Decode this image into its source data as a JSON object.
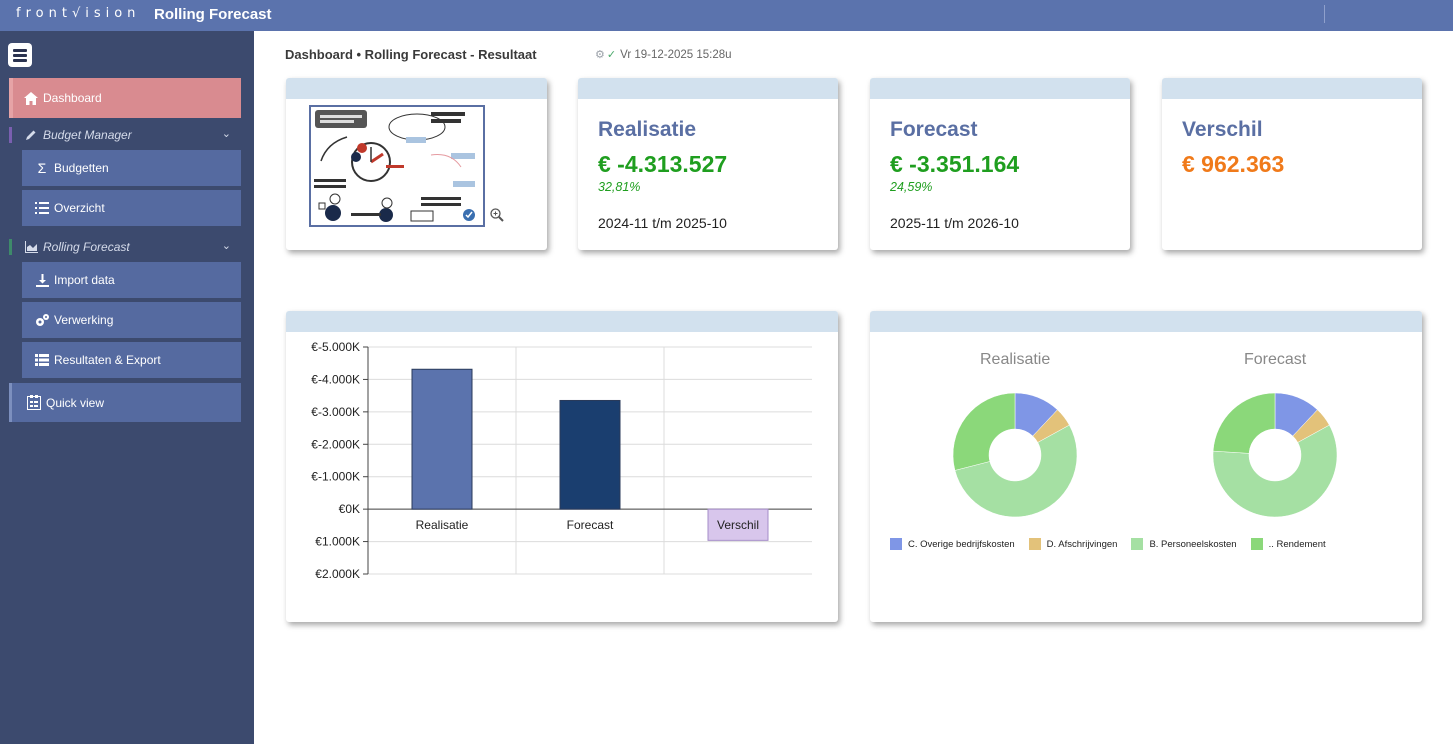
{
  "topbar": {
    "logo_prefix": "front",
    "logo_suffix": "ision",
    "title": "Rolling Forecast"
  },
  "sidebar": {
    "dashboard": "Dashboard",
    "budget_manager": "Budget Manager",
    "budgetten": "Budgetten",
    "overzicht": "Overzicht",
    "rolling_forecast": "Rolling Forecast",
    "import_data": "Import data",
    "verwerking": "Verwerking",
    "resultaten": "Resultaten & Export",
    "quick_view": "Quick view"
  },
  "header": {
    "breadcrumb": "Dashboard • Rolling Forecast - Resultaat",
    "status": "Vr 19-12-2025 15:28u"
  },
  "kpis": {
    "realisatie": {
      "title": "Realisatie",
      "value": "€ -4.313.527",
      "pct": "32,81%",
      "period": "2024-11 t/m 2025-10"
    },
    "forecast": {
      "title": "Forecast",
      "value": "€ -3.351.164",
      "pct": "24,59%",
      "period": "2025-11 t/m 2026-10"
    },
    "verschil": {
      "title": "Verschil",
      "value": "€ 962.363"
    }
  },
  "colors": {
    "green": "#1f9e1f",
    "orange": "#f07a1a",
    "bar_realisatie": "#5b73ad",
    "bar_forecast": "#1a3e6f",
    "bar_verschil": "#d8c6ec"
  },
  "chart_data": [
    {
      "type": "bar",
      "categories": [
        "Realisatie",
        "Forecast",
        "Verschil"
      ],
      "values": [
        -4313.527,
        -3351.164,
        962.363
      ],
      "ylim": [
        -5000,
        2000
      ],
      "yticks": [
        "€-5.000K",
        "€-4.000K",
        "€-3.000K",
        "€-2.000K",
        "€-1.000K",
        "€0K",
        "€1.000K",
        "€2.000K"
      ],
      "inverted_axis": true,
      "grid": true
    },
    {
      "type": "pie",
      "title": "Realisatie",
      "labels": [
        "C. Overige bedrijfskosten",
        "D. Afschrijvingen",
        "B. Personeelskosten",
        ".. Rendement"
      ],
      "values": [
        12,
        5,
        54,
        29
      ]
    },
    {
      "type": "pie",
      "title": "Forecast",
      "labels": [
        "C. Overige bedrijfskosten",
        "D. Afschrijvingen",
        "B. Personeelskosten",
        ".. Rendement"
      ],
      "values": [
        12,
        5,
        59,
        24
      ]
    }
  ],
  "legend_colors": [
    "#7f96e6",
    "#e3c27a",
    "#a5e0a3",
    "#8bd87a"
  ]
}
